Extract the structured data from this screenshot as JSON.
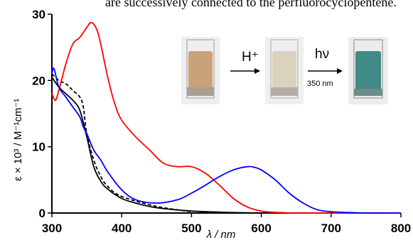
{
  "header_text": "are successively connected to the perfluorocyclopentene.",
  "chart_data": {
    "type": "line",
    "title": "",
    "xlabel": "λ / nm",
    "ylabel": "ε × 10³ / M⁻¹cm⁻¹",
    "xlim": [
      300,
      800
    ],
    "ylim": [
      0,
      30
    ],
    "xticks": [
      300,
      400,
      500,
      600,
      700,
      800
    ],
    "yticks": [
      0,
      10,
      20,
      30
    ],
    "xtick_labels": [
      "300",
      "400",
      "500",
      "600",
      "700",
      "800"
    ],
    "ytick_labels": [
      "0",
      "10",
      "20",
      "30"
    ],
    "grid": false,
    "series": [
      {
        "color": "#000000",
        "dash": "solid",
        "x": [
          300,
          310,
          320,
          330,
          340,
          350,
          360,
          370,
          380,
          400,
          420,
          450,
          500,
          550,
          600
        ],
        "y": [
          20.5,
          19.0,
          18.0,
          17.0,
          15.5,
          11.5,
          7.0,
          4.8,
          3.6,
          2.2,
          1.5,
          0.8,
          0.3,
          0.1,
          0.0
        ]
      },
      {
        "color": "#000000",
        "dash": "dashed",
        "x": [
          300,
          310,
          320,
          330,
          340,
          345,
          350,
          360,
          370,
          380,
          400,
          450,
          500
        ],
        "y": [
          21.0,
          20.0,
          19.5,
          18.5,
          17.5,
          16.0,
          12.0,
          8.0,
          5.5,
          4.0,
          2.5,
          1.0,
          0.2
        ]
      },
      {
        "color": "#ff0000",
        "dash": "solid",
        "x": [
          300,
          305,
          310,
          320,
          330,
          340,
          350,
          355,
          360,
          365,
          370,
          380,
          390,
          400,
          420,
          440,
          460,
          480,
          500,
          520,
          540,
          560,
          580,
          600,
          620,
          650,
          700,
          750,
          800
        ],
        "y": [
          18.0,
          17.0,
          18.5,
          22.5,
          25.5,
          26.5,
          28.0,
          28.7,
          28.5,
          27.5,
          25.5,
          20.5,
          16.5,
          14.0,
          11.5,
          9.5,
          7.5,
          7.0,
          7.0,
          6.0,
          4.2,
          2.2,
          0.9,
          0.3,
          0.1,
          0.0,
          0.0,
          0.0,
          0.0
        ]
      },
      {
        "color": "#0000ff",
        "dash": "solid",
        "x": [
          300,
          303,
          310,
          320,
          330,
          340,
          345,
          350,
          360,
          370,
          380,
          400,
          420,
          450,
          480,
          500,
          520,
          540,
          560,
          580,
          590,
          600,
          620,
          640,
          660,
          680,
          700,
          720,
          750,
          800
        ],
        "y": [
          21.0,
          21.8,
          19.0,
          17.5,
          16.0,
          14.5,
          13.0,
          12.0,
          9.5,
          8.0,
          6.2,
          3.5,
          2.0,
          1.5,
          2.0,
          3.0,
          4.2,
          5.5,
          6.5,
          7.0,
          6.9,
          6.5,
          5.0,
          3.0,
          1.5,
          0.5,
          0.2,
          0.1,
          0.0,
          0.0
        ]
      }
    ],
    "inset": {
      "arrow1_label": "H⁺",
      "arrow2_label": "hν",
      "arrow2_sublabel": "350 nm",
      "vial_colors": [
        "#c9a27a",
        "#d9d2bc",
        "#3f8a84"
      ]
    }
  }
}
